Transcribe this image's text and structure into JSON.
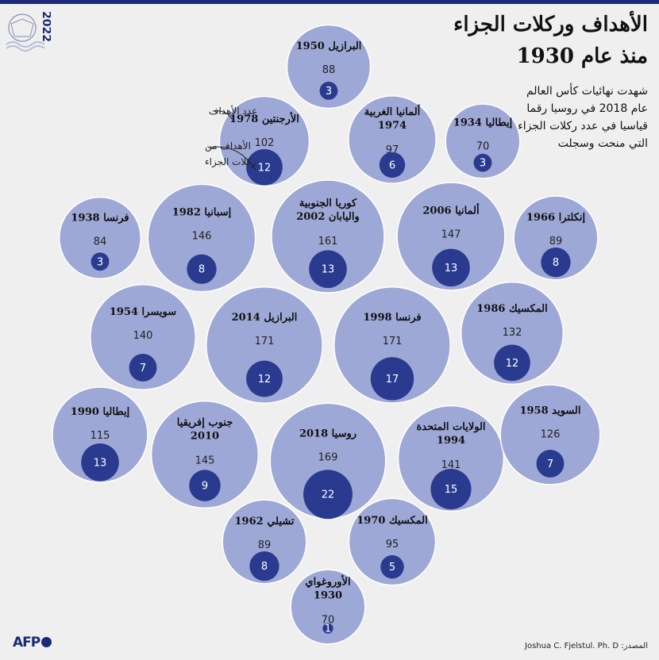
{
  "title": {
    "line1": "الأهداف وركلات الجزاء",
    "line2": "منذ عام 1930",
    "subtitle": "شهدت نهائيات كأس العالم عام 2018 في روسيا رقما قياسيا في عدد ركلات الجزاء التي منحت وسجلت"
  },
  "legend": {
    "goals_label": "عدد الأهداف",
    "penalties_label": "الأهداف من ركلات الجزاء"
  },
  "logo": {
    "text": "2022"
  },
  "source": "المصدر: Joshua C. Fjelstul. Ph. D",
  "credit": "AFP",
  "colors": {
    "bubble": "#9ea8d6",
    "penalty": "#2a3a8f",
    "background": "#efefef",
    "brand": "#1a2a78"
  },
  "chart_data": {
    "type": "bubble",
    "measures": [
      "goals",
      "penalty_goals"
    ],
    "tournaments": [
      {
        "label": "البرازيل 1950",
        "goals": 88,
        "penalty_goals": 3
      },
      {
        "label": "الأرجنتين 1978",
        "goals": 102,
        "penalty_goals": 12
      },
      {
        "label": "ألمانيا الغربية 1974",
        "goals": 97,
        "penalty_goals": 6
      },
      {
        "label": "إيطاليا 1934",
        "goals": 70,
        "penalty_goals": 3
      },
      {
        "label": "فرنسا 1938",
        "goals": 84,
        "penalty_goals": 3
      },
      {
        "label": "إسبانيا 1982",
        "goals": 146,
        "penalty_goals": 8
      },
      {
        "label": "كوريا الجنوبية واليابان 2002",
        "goals": 161,
        "penalty_goals": 13
      },
      {
        "label": "ألمانيا 2006",
        "goals": 147,
        "penalty_goals": 13
      },
      {
        "label": "إنكلترا 1966",
        "goals": 89,
        "penalty_goals": 8
      },
      {
        "label": "سويسرا 1954",
        "goals": 140,
        "penalty_goals": 7
      },
      {
        "label": "البرازيل 2014",
        "goals": 171,
        "penalty_goals": 12
      },
      {
        "label": "فرنسا 1998",
        "goals": 171,
        "penalty_goals": 17
      },
      {
        "label": "المكسيك 1986",
        "goals": 132,
        "penalty_goals": 12
      },
      {
        "label": "إيطاليا 1990",
        "goals": 115,
        "penalty_goals": 13
      },
      {
        "label": "جنوب إفريقيا 2010",
        "goals": 145,
        "penalty_goals": 9
      },
      {
        "label": "روسيا 2018",
        "goals": 169,
        "penalty_goals": 22
      },
      {
        "label": "الولايات المتحدة 1994",
        "goals": 141,
        "penalty_goals": 15
      },
      {
        "label": "السويد 1958",
        "goals": 126,
        "penalty_goals": 7
      },
      {
        "label": "تشيلي 1962",
        "goals": 89,
        "penalty_goals": 8
      },
      {
        "label": "المكسيك 1970",
        "goals": 95,
        "penalty_goals": 5
      },
      {
        "label": "الأوروغواي 1930",
        "goals": 70,
        "penalty_goals": 1
      }
    ]
  }
}
